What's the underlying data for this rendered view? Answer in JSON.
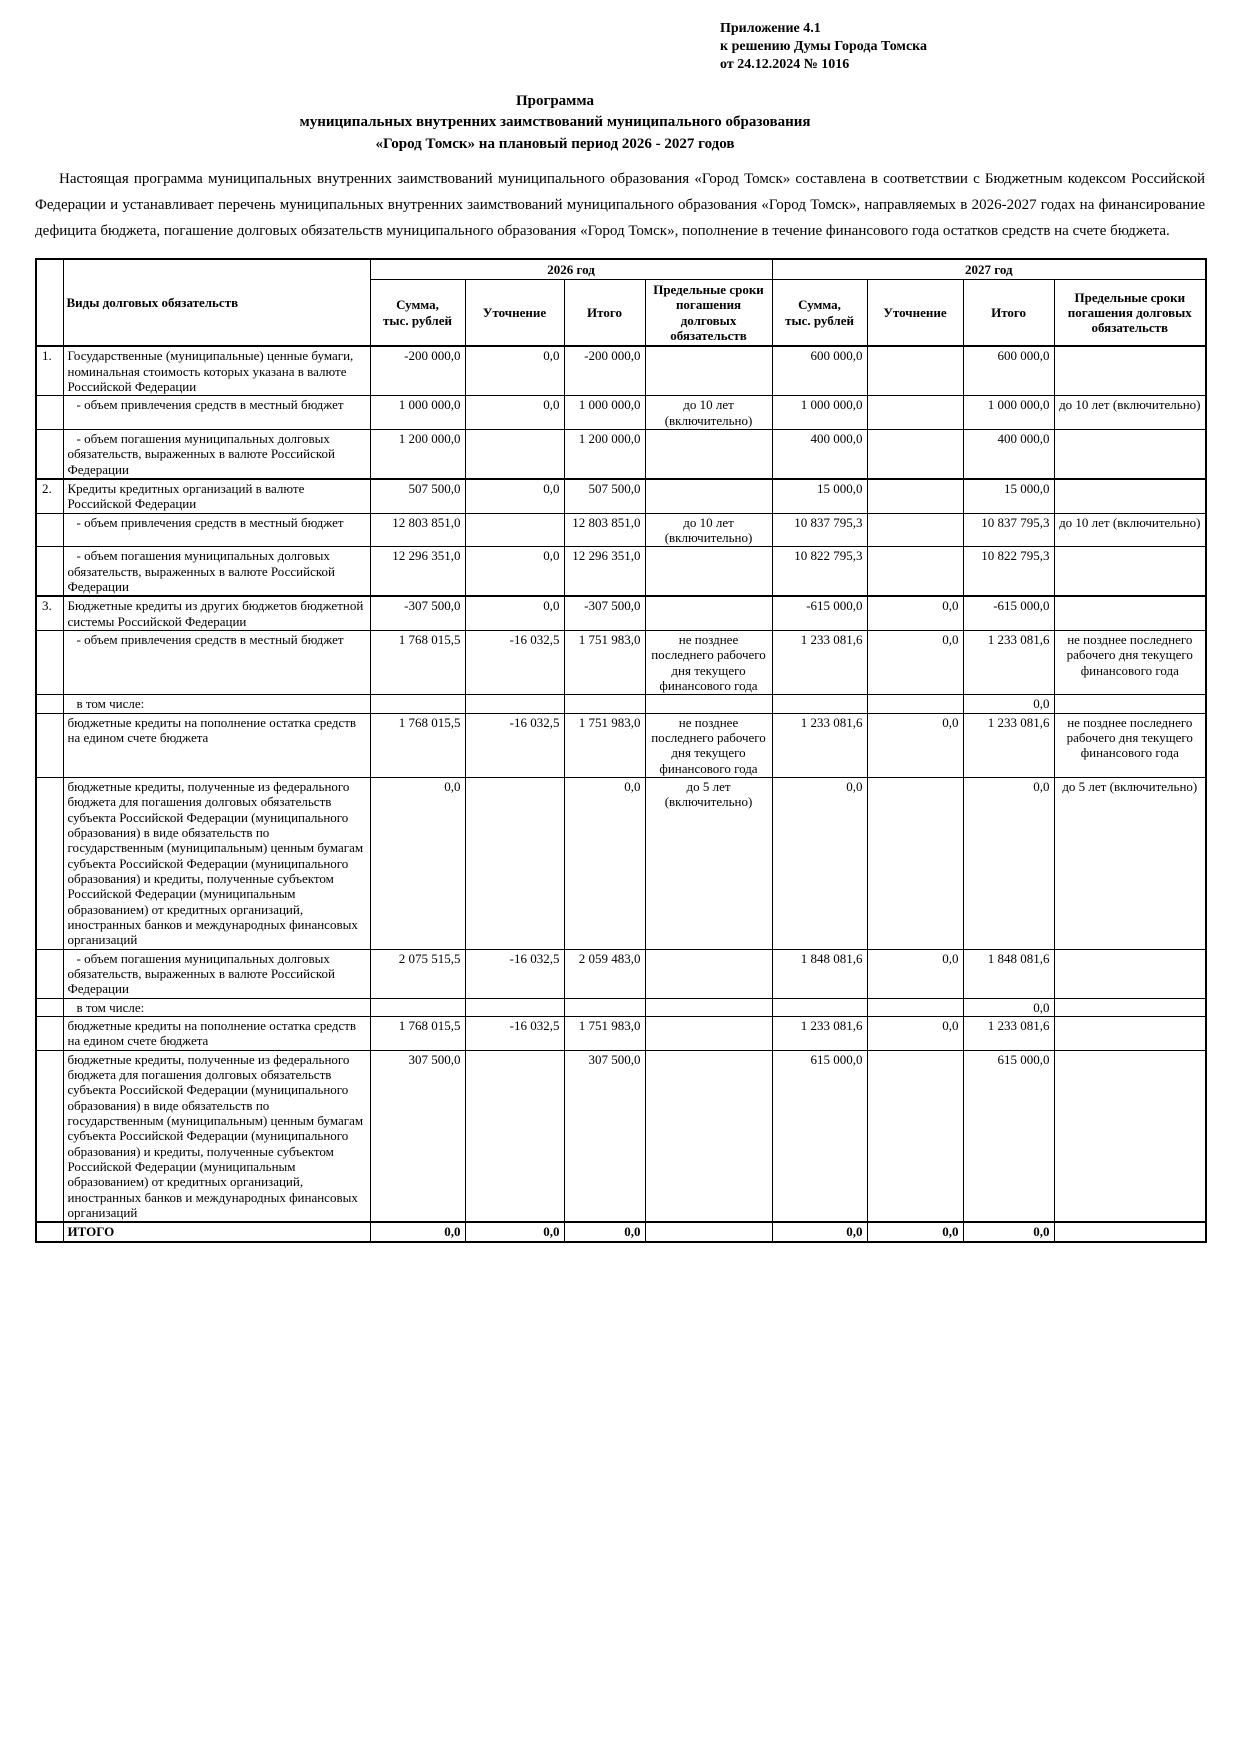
{
  "appendix": {
    "line1": "Приложение 4.1",
    "line2": "к решению Думы Города Томска",
    "line3": "от 24.12.2024 № 1016"
  },
  "title": {
    "line1": "Программа",
    "line2": "муниципальных внутренних заимствований муниципального образования",
    "line3": "«Город Томск» на плановый период 2026 - 2027 годов"
  },
  "intro": "Настоящая программа муниципальных внутренних заимствований муниципального образования «Город Томск» составлена в соответствии с Бюджетным кодексом Российской Федерации и устанавливает перечень муниципальных внутренних заимствований муниципального образования «Город Томск», направляемых в 2026-2027 годах на финансирование дефицита бюджета, погашение долговых обязательств муниципального образования «Город Томск», пополнение в течение финансового года остатков средств на счете бюджета.",
  "table": {
    "headers": {
      "types": "Виды долговых обязательств",
      "year_2026": "2026 год",
      "year_2027": "2027 год",
      "sum": "Сумма,\nтыс. рублей",
      "clarification": "Уточнение",
      "total": "Итого",
      "deadline": "Предельные сроки погашения долговых обязательств"
    },
    "rows": [
      {
        "num": "1.",
        "style": "item",
        "label": "Государственные (муниципальные) ценные бумаги, номинальная стоимость которых указана в валюте Российской Федерации",
        "values": [
          "-200 000,0",
          "0,0",
          "-200 000,0",
          "",
          "600 000,0",
          "",
          "600 000,0",
          ""
        ]
      },
      {
        "num": "",
        "style": "sub",
        "label": "- объем привлечения средств в местный бюджет",
        "values": [
          "1 000 000,0",
          "0,0",
          "1 000 000,0",
          "до 10 лет (включительно)",
          "1 000 000,0",
          "",
          "1 000 000,0",
          "до 10 лет (включительно)"
        ]
      },
      {
        "num": "",
        "style": "sub",
        "label": "- объем погашения муниципальных долговых обязательств, выраженных в валюте Российской Федерации",
        "values": [
          "1 200 000,0",
          "",
          "1 200 000,0",
          "",
          "400 000,0",
          "",
          "400 000,0",
          ""
        ]
      },
      {
        "num": "2.",
        "style": "item",
        "label": "Кредиты кредитных организаций в валюте Российской Федерации",
        "values": [
          "507 500,0",
          "0,0",
          "507 500,0",
          "",
          "15 000,0",
          "",
          "15 000,0",
          ""
        ]
      },
      {
        "num": "",
        "style": "sub",
        "label": "- объем привлечения средств в местный бюджет",
        "values": [
          "12 803 851,0",
          "",
          "12 803 851,0",
          "до 10 лет (включительно)",
          "10 837 795,3",
          "",
          "10 837 795,3",
          "до 10 лет (включительно)"
        ]
      },
      {
        "num": "",
        "style": "sub",
        "label": "- объем погашения муниципальных долговых обязательств, выраженных в валюте Российской Федерации",
        "values": [
          "12 296 351,0",
          "0,0",
          "12 296 351,0",
          "",
          "10 822 795,3",
          "",
          "10 822 795,3",
          ""
        ]
      },
      {
        "num": "3.",
        "style": "item",
        "label": "Бюджетные кредиты из других бюджетов бюджетной системы Российской Федерации",
        "values": [
          "-307 500,0",
          "0,0",
          "-307 500,0",
          "",
          "-615 000,0",
          "0,0",
          "-615 000,0",
          ""
        ]
      },
      {
        "num": "",
        "style": "sub",
        "label": "- объем привлечения средств в местный бюджет",
        "values": [
          "1 768 015,5",
          "-16 032,5",
          "1 751 983,0",
          "не позднее последнего рабочего дня текущего финансового года",
          "1 233 081,6",
          "0,0",
          "1 233 081,6",
          "не позднее последнего рабочего дня текущего финансового года"
        ]
      },
      {
        "num": "",
        "style": "incl",
        "label": "в том числе:",
        "values": [
          "",
          "",
          "",
          "",
          "",
          "",
          "0,0",
          ""
        ]
      },
      {
        "num": "",
        "style": "plain",
        "label": "бюджетные кредиты на пополнение остатка средств на едином счете бюджета",
        "values": [
          "1 768 015,5",
          "-16 032,5",
          "1 751 983,0",
          "не позднее последнего рабочего дня текущего финансового года",
          "1 233 081,6",
          "0,0",
          "1 233 081,6",
          "не позднее последнего рабочего дня текущего финансового года"
        ]
      },
      {
        "num": "",
        "style": "plain",
        "label": "бюджетные кредиты, полученные из федерального бюджета для погашения долговых обязательств субъекта Российской Федерации (муниципального образования) в виде обязательств по государственным (муниципальным) ценным бумагам субъекта Российской Федерации (муниципального образования) и кредиты, полученные субъектом Российской Федерации (муниципальным образованием) от кредитных организаций, иностранных банков и международных финансовых организаций",
        "values": [
          "0,0",
          "",
          "0,0",
          "до 5 лет (включительно)",
          "0,0",
          "",
          "0,0",
          "до 5 лет (включительно)"
        ]
      },
      {
        "num": "",
        "style": "sub",
        "label": "- объем погашения муниципальных долговых обязательств, выраженных в валюте Российской Федерации",
        "values": [
          "2 075 515,5",
          "-16 032,5",
          "2 059 483,0",
          "",
          "1 848 081,6",
          "0,0",
          "1 848 081,6",
          ""
        ]
      },
      {
        "num": "",
        "style": "incl",
        "label": "в том числе:",
        "values": [
          "",
          "",
          "",
          "",
          "",
          "",
          "0,0",
          ""
        ]
      },
      {
        "num": "",
        "style": "plain",
        "label": "бюджетные кредиты на пополнение остатка средств на едином счете бюджета",
        "values": [
          "1 768 015,5",
          "-16 032,5",
          "1 751 983,0",
          "",
          "1 233 081,6",
          "0,0",
          "1 233 081,6",
          ""
        ]
      },
      {
        "num": "",
        "style": "plain",
        "label": "бюджетные кредиты, полученные из федерального бюджета для погашения долговых обязательств субъекта Российской Федерации (муниципального образования) в виде обязательств по государственным (муниципальным) ценным бумагам субъекта Российской Федерации (муниципального образования) и кредиты, полученные субъектом Российской Федерации (муниципальным образованием) от кредитных организаций, иностранных банков и международных финансовых организаций",
        "values": [
          "307 500,0",
          "",
          "307 500,0",
          "",
          "615 000,0",
          "",
          "615 000,0",
          ""
        ]
      },
      {
        "num": "",
        "style": "total",
        "label": "ИТОГО",
        "values": [
          "0,0",
          "0,0",
          "0,0",
          "",
          "0,0",
          "0,0",
          "0,0",
          ""
        ]
      }
    ]
  }
}
